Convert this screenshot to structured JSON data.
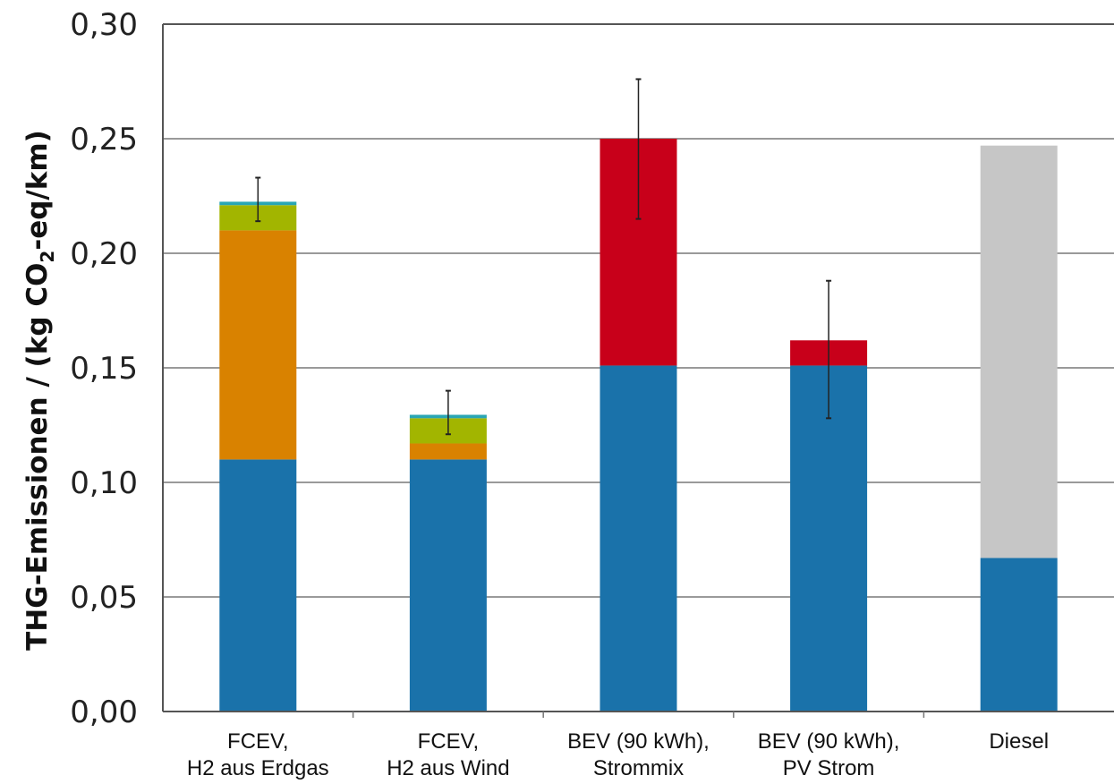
{
  "chart_data": {
    "type": "bar",
    "stacked": true,
    "ylabel_parts": [
      "THG-Emissionen / (kg CO",
      "2",
      "-eq/km)"
    ],
    "ylim": [
      0,
      0.3
    ],
    "yticks": [
      "0,00",
      "0,05",
      "0,10",
      "0,15",
      "0,20",
      "0,25",
      "0,30"
    ],
    "ytick_values": [
      0,
      0.05,
      0.1,
      0.15,
      0.2,
      0.25,
      0.3
    ],
    "grid": true,
    "categories": [
      [
        "FCEV,",
        "H2 aus Erdgas"
      ],
      [
        "FCEV,",
        "H2 aus Wind"
      ],
      [
        "BEV (90 kWh),",
        "Strommix"
      ],
      [
        "BEV (90 kWh),",
        "PV Strom"
      ],
      [
        "Diesel"
      ]
    ],
    "series": [
      {
        "color": "#1a72aa",
        "values": [
          0.11,
          0.11,
          0.151,
          0.151,
          0.067
        ]
      },
      {
        "color": "#d98200",
        "values": [
          0.1,
          0.007,
          0,
          0,
          0
        ]
      },
      {
        "color": "#a2b500",
        "values": [
          0.011,
          0.011,
          0,
          0,
          0
        ]
      },
      {
        "color": "#2aa6b4",
        "values": [
          0.0015,
          0.0015,
          0,
          0,
          0
        ]
      },
      {
        "color": "#c8001a",
        "values": [
          0,
          0,
          0.099,
          0.011,
          0
        ]
      },
      {
        "color": "#c6c6c6",
        "values": [
          0,
          0,
          0,
          0,
          0.18
        ]
      }
    ],
    "error_bars": [
      {
        "low": 0.214,
        "high": 0.233
      },
      {
        "low": 0.121,
        "high": 0.14
      },
      {
        "low": 0.215,
        "high": 0.276
      },
      {
        "low": 0.128,
        "high": 0.188
      },
      null
    ]
  }
}
